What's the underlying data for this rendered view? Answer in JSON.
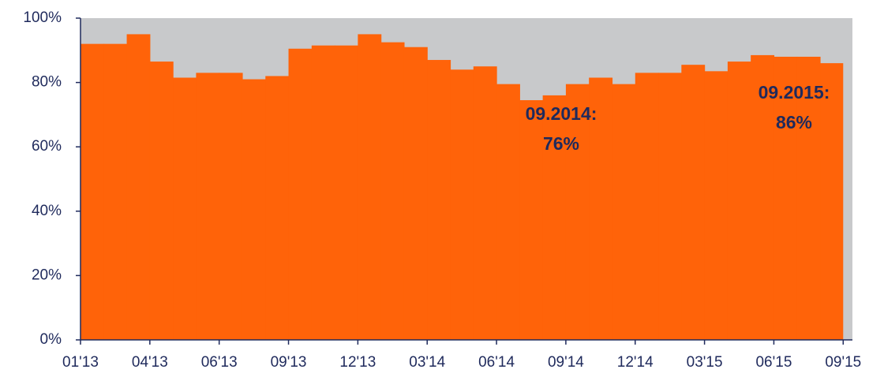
{
  "chart_data": {
    "type": "step-area",
    "values": [
      92,
      92,
      95,
      86.5,
      81.5,
      83,
      83,
      81,
      82,
      90.5,
      91.5,
      91.5,
      95,
      92.5,
      91,
      87,
      84,
      85,
      79.5,
      74.5,
      76,
      79.5,
      81.5,
      79.5,
      83,
      83,
      85.5,
      83.5,
      86.5,
      88.5,
      88,
      88,
      86
    ],
    "color": "#ff6309",
    "background_color": "#c8c9cb",
    "xlim": [
      0,
      33.4
    ],
    "xticks": [
      {
        "value": 0,
        "label": "01'13"
      },
      {
        "value": 3,
        "label": "04'13"
      },
      {
        "value": 6,
        "label": "06'13"
      },
      {
        "value": 9,
        "label": "09'13"
      },
      {
        "value": 12,
        "label": "12'13"
      },
      {
        "value": 15,
        "label": "03'14"
      },
      {
        "value": 18,
        "label": "06'14"
      },
      {
        "value": 21,
        "label": "09'14"
      },
      {
        "value": 24,
        "label": "12'14"
      },
      {
        "value": 27,
        "label": "03'15"
      },
      {
        "value": 30,
        "label": "06'15"
      },
      {
        "value": 33,
        "label": "09'15"
      }
    ],
    "ylim": [
      0,
      100
    ],
    "yticks": [
      {
        "value": 0,
        "label": "0%"
      },
      {
        "value": 20,
        "label": "20%"
      },
      {
        "value": 40,
        "label": "40%"
      },
      {
        "value": 60,
        "label": "60%"
      },
      {
        "value": 80,
        "label": "80%"
      },
      {
        "value": 100,
        "label": "100%"
      }
    ],
    "annotations": [
      {
        "lines": [
          "09.2014:",
          "76%"
        ]
      },
      {
        "lines": [
          "09.2015:",
          "86%"
        ]
      }
    ]
  }
}
